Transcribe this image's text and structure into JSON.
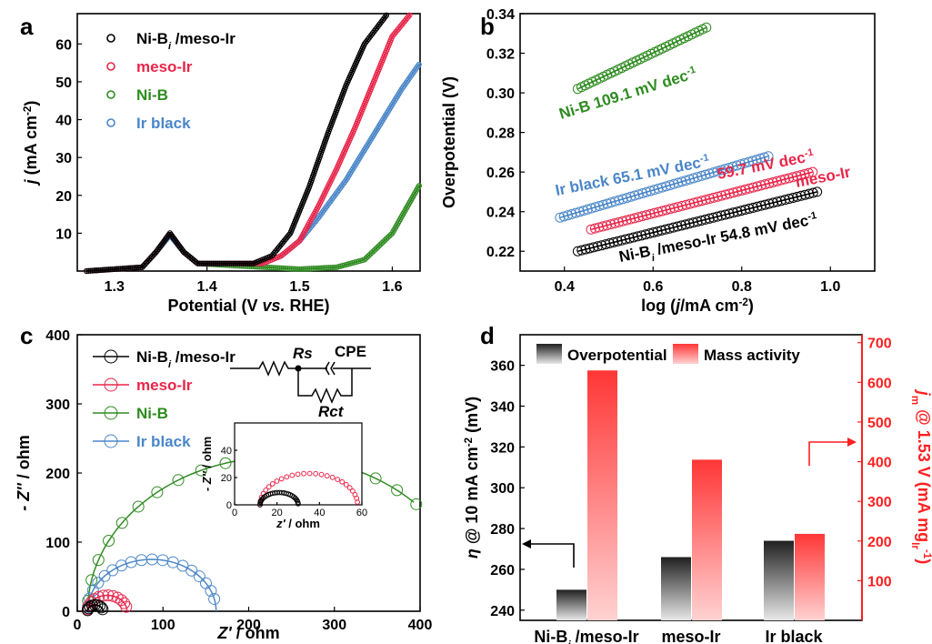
{
  "colors": {
    "black": "#000000",
    "red": "#e8264a",
    "green": "#2e8b20",
    "blue": "#4a86c8",
    "barred": "#ff3b3b"
  },
  "chart_data": [
    {
      "panel": "a",
      "type": "line",
      "xlabel_pre": "Potential (V ",
      "xlabel_ital": "vs.",
      "xlabel_post": " RHE)",
      "ylabel_j": "j",
      "ylabel_rest": " (mA cm",
      "ylabel_sup": "-2",
      "ylabel_end": ")",
      "xlim": [
        1.26,
        1.63
      ],
      "ylim": [
        0,
        68
      ],
      "xticks": [
        "1.3",
        "1.4",
        "1.5",
        "1.6"
      ],
      "yticks": [
        "10",
        "20",
        "30",
        "40",
        "50",
        "60"
      ],
      "series": [
        {
          "name": "Ni-B",
          "name_sub": "i",
          "name_post": " /meso-Ir",
          "color": "#000000",
          "x": [
            1.27,
            1.33,
            1.345,
            1.36,
            1.375,
            1.39,
            1.45,
            1.47,
            1.49,
            1.51,
            1.53,
            1.55,
            1.57,
            1.595
          ],
          "y": [
            0,
            1,
            5,
            10,
            5,
            2,
            2,
            4,
            10,
            22,
            36,
            49,
            60,
            68
          ]
        },
        {
          "name": "meso-Ir",
          "color": "#e8264a",
          "x": [
            1.27,
            1.33,
            1.345,
            1.36,
            1.375,
            1.39,
            1.46,
            1.48,
            1.5,
            1.52,
            1.54,
            1.56,
            1.58,
            1.6,
            1.62
          ],
          "y": [
            0,
            1,
            5,
            10,
            5,
            2,
            2,
            4,
            8,
            17,
            27,
            38,
            50,
            62,
            68
          ]
        },
        {
          "name": "Ni-B",
          "color": "#2e8b20",
          "x": [
            1.27,
            1.33,
            1.345,
            1.36,
            1.375,
            1.39,
            1.5,
            1.54,
            1.57,
            1.6,
            1.63
          ],
          "y": [
            0,
            1,
            5,
            9.5,
            5,
            2,
            0.5,
            1,
            3,
            10,
            23
          ]
        },
        {
          "name": "Ir black",
          "color": "#4a86c8",
          "x": [
            1.27,
            1.33,
            1.345,
            1.36,
            1.375,
            1.39,
            1.46,
            1.48,
            1.5,
            1.52,
            1.55,
            1.58,
            1.61,
            1.63
          ],
          "y": [
            0,
            1,
            5,
            9.5,
            5,
            2,
            2,
            4,
            8,
            14,
            24,
            36,
            48,
            55
          ]
        }
      ]
    },
    {
      "panel": "b",
      "type": "line",
      "xlabel_pre": "log (",
      "xlabel_ital": "j",
      "xlabel_mid": "/mA cm",
      "xlabel_sup": "-2",
      "xlabel_end": ")",
      "ylabel": "Overpotential (V)",
      "xlim": [
        0.3,
        1.1
      ],
      "ylim": [
        0.21,
        0.34
      ],
      "xticks": [
        "0.4",
        "0.6",
        "0.8",
        "1.0"
      ],
      "yticks": [
        "0.22",
        "0.24",
        "0.26",
        "0.28",
        "0.30",
        "0.32",
        "0.34"
      ],
      "series": [
        {
          "name": "Ni-B 109.1 mV dec",
          "sup": "-1",
          "color": "#2e8b20",
          "x": [
            0.43,
            0.72
          ],
          "y": [
            0.302,
            0.333
          ]
        },
        {
          "name": "Ir black 65.1 mV dec",
          "sup": "-1",
          "color": "#4a86c8",
          "x": [
            0.39,
            0.86
          ],
          "y": [
            0.237,
            0.268
          ]
        },
        {
          "name": "59.7 mV dec",
          "sup": "-1",
          "extra": "meso-Ir",
          "color": "#e8264a",
          "x": [
            0.46,
            0.96
          ],
          "y": [
            0.231,
            0.26
          ]
        },
        {
          "name": "Ni-B",
          "sub": "i",
          "post": " /meso-Ir 54.8 mV dec",
          "sup": "-1",
          "color": "#000000",
          "x": [
            0.43,
            0.97
          ],
          "y": [
            0.22,
            0.25
          ]
        }
      ]
    },
    {
      "panel": "c",
      "type": "scatter",
      "xlabel_z": "Z'",
      "xlabel_unit": " / ohm",
      "ylabel_z": "- Z''",
      "ylabel_unit": " / ohm",
      "xlim": [
        0,
        400
      ],
      "ylim": [
        0,
        400
      ],
      "xticks": [
        "0",
        "100",
        "200",
        "300",
        "400"
      ],
      "yticks": [
        "0",
        "100",
        "200",
        "300",
        "400"
      ],
      "circuit": {
        "rs": "Rs",
        "cpe": "CPE",
        "rct": "Rct"
      },
      "inset": {
        "xlabel_z": "z'",
        "xlabel_unit": " / ohm",
        "ylabel_z": "- Z''",
        "ylabel_unit": " / ohm",
        "xlim": [
          0,
          60
        ],
        "ylim": [
          0,
          60
        ],
        "xticks": [
          "0",
          "20",
          "40",
          "60"
        ],
        "yticks": [
          "0",
          "20",
          "40"
        ]
      },
      "series": [
        {
          "name": "Ni-B",
          "name_sub": "i",
          "name_post": " /meso-Ir",
          "color": "#000000",
          "r0": 12,
          "r1": 30,
          "pts": 9
        },
        {
          "name": "meso-Ir",
          "color": "#e8264a",
          "r0": 12,
          "r1": 58,
          "pts": 12
        },
        {
          "name": "Ni-B",
          "color": "#2e8b20",
          "r0": 12,
          "r1": 458,
          "pts": 22
        },
        {
          "name": "Ir black",
          "color": "#4a86c8",
          "r0": 12,
          "r1": 162,
          "pts": 18
        }
      ]
    },
    {
      "panel": "d",
      "type": "bar",
      "categories": [
        "Ni-B",
        "meso-Ir",
        "Ir black"
      ],
      "cat0_sub": "i",
      "cat0_post": " /meso-Ir",
      "ylabel_eta": "η",
      "ylabel_rest": " @ 10 mA cm",
      "ylabel_sup": "-2",
      "ylabel_end": " (mV)",
      "y2label_j": "j",
      "y2label_sub": "m",
      "y2label_rest": " @ 1.53 V (mA mg",
      "y2label_sub2": "Ir",
      "y2label_sup": "-1",
      "y2label_end": ")",
      "ylim": [
        235,
        375
      ],
      "y2lim": [
        0,
        720
      ],
      "yticks": [
        "240",
        "260",
        "280",
        "300",
        "320",
        "340",
        "360"
      ],
      "y2ticks": [
        "100",
        "200",
        "300",
        "400",
        "500",
        "600",
        "700"
      ],
      "series": [
        {
          "name": "Overpotential",
          "values": [
            250,
            266,
            274
          ]
        },
        {
          "name": "Mass activity",
          "values": [
            630,
            405,
            218
          ]
        }
      ]
    }
  ],
  "panel_labels": [
    "a",
    "b",
    "c",
    "d"
  ]
}
